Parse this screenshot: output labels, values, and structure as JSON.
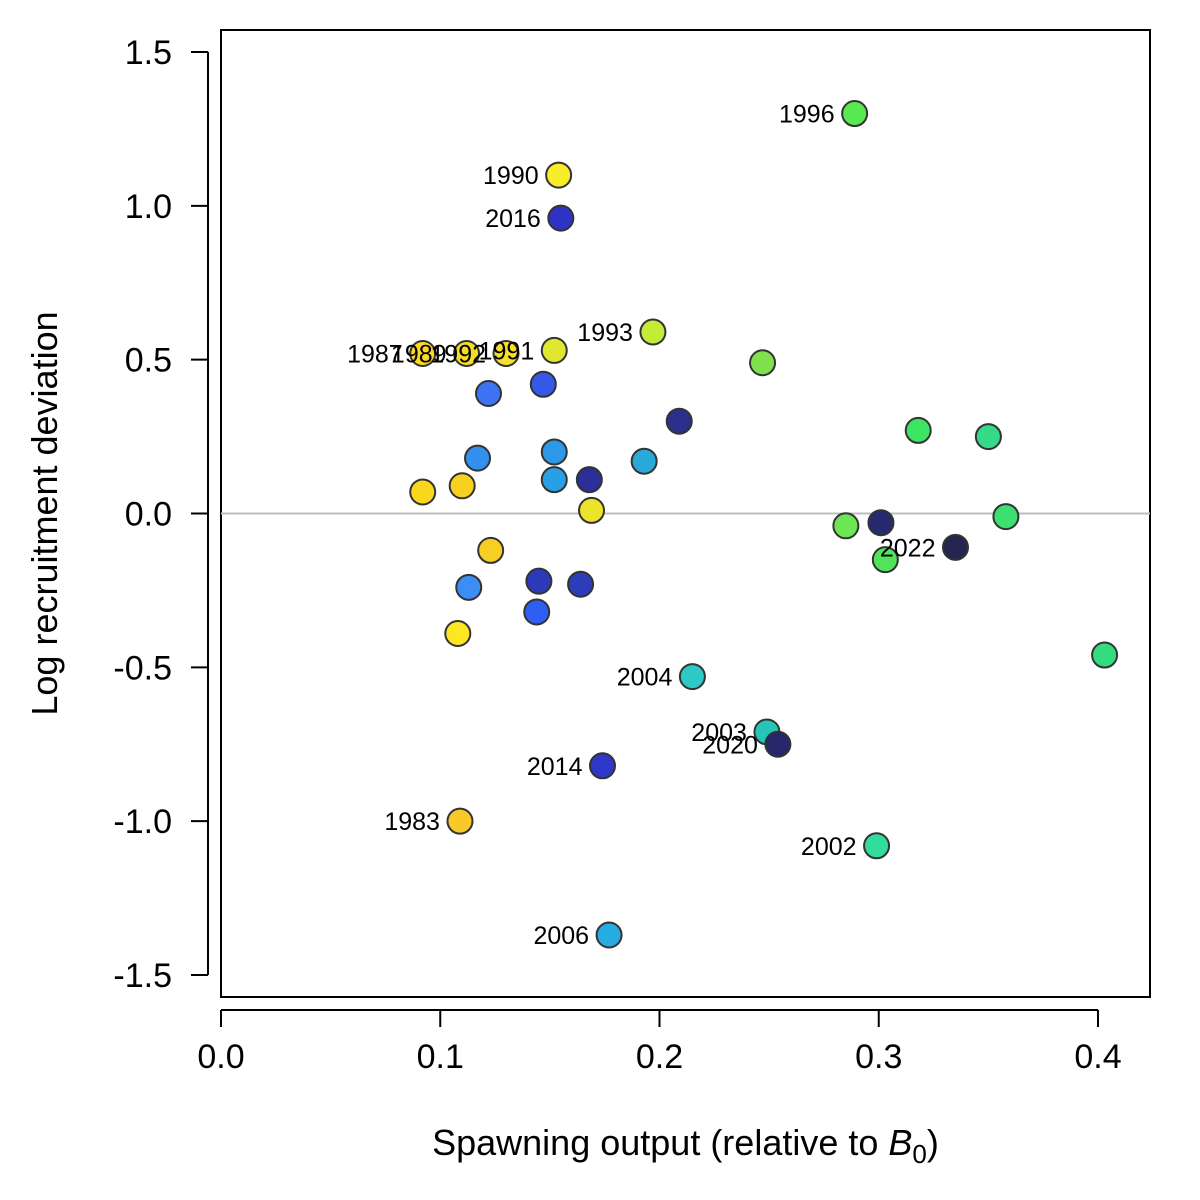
{
  "chart_data": {
    "type": "scatter",
    "title": "",
    "xlabel": "Spawning output (relative to ",
    "xlabel_symbol": "B",
    "xlabel_subscript": "0",
    "xlabel_suffix": ")",
    "ylabel": "Log recruitment deviation",
    "xlim": [
      0.0,
      0.42
    ],
    "ylim": [
      -1.5,
      1.5
    ],
    "x_ticks": [
      "0.0",
      "0.1",
      "0.2",
      "0.3",
      "0.4"
    ],
    "y_ticks": [
      "-1.5",
      "-1.0",
      "-0.5",
      "0.0",
      "0.5",
      "1.0",
      "1.5"
    ],
    "reference_line_y": 0,
    "reference_line_color": "#bebebe",
    "grid": false,
    "points": [
      {
        "x": 0.092,
        "y": 0.07,
        "color": "#f9d71c",
        "label": ""
      },
      {
        "x": 0.108,
        "y": -0.39,
        "color": "#fde725",
        "label": ""
      },
      {
        "x": 0.11,
        "y": 0.09,
        "color": "#f7d11f",
        "label": ""
      },
      {
        "x": 0.113,
        "y": -0.24,
        "color": "#3a8ef6",
        "label": ""
      },
      {
        "x": 0.117,
        "y": 0.18,
        "color": "#3490ee",
        "label": ""
      },
      {
        "x": 0.122,
        "y": 0.39,
        "color": "#3d74f2",
        "label": ""
      },
      {
        "x": 0.123,
        "y": -0.12,
        "color": "#f7ce22",
        "label": ""
      },
      {
        "x": 0.144,
        "y": -0.32,
        "color": "#2f5ef3",
        "label": ""
      },
      {
        "x": 0.145,
        "y": -0.22,
        "color": "#2c3ab8",
        "label": ""
      },
      {
        "x": 0.147,
        "y": 0.42,
        "color": "#3658e8",
        "label": ""
      },
      {
        "x": 0.152,
        "y": 0.2,
        "color": "#2d97e8",
        "label": ""
      },
      {
        "x": 0.152,
        "y": 0.11,
        "color": "#2aa0e4",
        "label": ""
      },
      {
        "x": 0.164,
        "y": -0.23,
        "color": "#2b3db9",
        "label": ""
      },
      {
        "x": 0.168,
        "y": 0.11,
        "color": "#2a2f99",
        "label": ""
      },
      {
        "x": 0.169,
        "y": 0.01,
        "color": "#ece32b",
        "label": ""
      },
      {
        "x": 0.193,
        "y": 0.17,
        "color": "#28a9d8",
        "label": ""
      },
      {
        "x": 0.209,
        "y": 0.3,
        "color": "#2b2e8a",
        "label": ""
      },
      {
        "x": 0.247,
        "y": 0.49,
        "color": "#7fe24c",
        "label": ""
      },
      {
        "x": 0.285,
        "y": -0.04,
        "color": "#6de655",
        "label": ""
      },
      {
        "x": 0.301,
        "y": -0.03,
        "color": "#272a6e",
        "label": ""
      },
      {
        "x": 0.303,
        "y": -0.15,
        "color": "#52e35b",
        "label": ""
      },
      {
        "x": 0.318,
        "y": 0.27,
        "color": "#3de362",
        "label": ""
      },
      {
        "x": 0.35,
        "y": 0.25,
        "color": "#35d98a",
        "label": ""
      },
      {
        "x": 0.358,
        "y": -0.01,
        "color": "#3de070",
        "label": ""
      },
      {
        "x": 0.403,
        "y": -0.46,
        "color": "#32dc7f",
        "label": ""
      },
      {
        "x": 0.109,
        "y": -1.0,
        "color": "#f9c92a",
        "label": "1983"
      },
      {
        "x": 0.092,
        "y": 0.52,
        "color": "#fbd824",
        "label": "1987"
      },
      {
        "x": 0.112,
        "y": 0.52,
        "color": "#f5dc28",
        "label": "1989"
      },
      {
        "x": 0.13,
        "y": 0.52,
        "color": "#f5e12a",
        "label": "1992"
      },
      {
        "x": 0.154,
        "y": 1.1,
        "color": "#f8ed2a",
        "label": "1990"
      },
      {
        "x": 0.152,
        "y": 0.53,
        "color": "#dfe82e",
        "label": "1991"
      },
      {
        "x": 0.197,
        "y": 0.59,
        "color": "#c2ec35",
        "label": "1993"
      },
      {
        "x": 0.289,
        "y": 1.3,
        "color": "#58e851",
        "label": "1996"
      },
      {
        "x": 0.299,
        "y": -1.08,
        "color": "#32dc9a",
        "label": "2002"
      },
      {
        "x": 0.249,
        "y": -0.71,
        "color": "#27c4b8",
        "label": "2003"
      },
      {
        "x": 0.215,
        "y": -0.53,
        "color": "#2cc9c5",
        "label": "2004"
      },
      {
        "x": 0.177,
        "y": -1.37,
        "color": "#26ace0",
        "label": "2006"
      },
      {
        "x": 0.174,
        "y": -0.82,
        "color": "#2f37c9",
        "label": "2014"
      },
      {
        "x": 0.155,
        "y": 0.96,
        "color": "#2e33c6",
        "label": "2016"
      },
      {
        "x": 0.254,
        "y": -0.75,
        "color": "#26276a",
        "label": "2020"
      },
      {
        "x": 0.335,
        "y": -0.11,
        "color": "#25264f",
        "label": "2022"
      }
    ]
  }
}
